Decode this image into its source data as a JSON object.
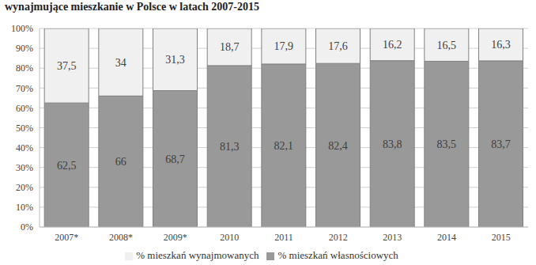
{
  "chart_data": {
    "type": "bar",
    "title": "wynajmujące mieszkanie w Polsce w latach 2007-2015",
    "categories": [
      "2007*",
      "2008*",
      "2009*",
      "2010",
      "2011",
      "2012",
      "2013",
      "2014",
      "2015"
    ],
    "series": [
      {
        "name": "% mieszkań własnościowych",
        "color": "#999999",
        "values": [
          62.5,
          66,
          68.7,
          81.3,
          82.1,
          82.4,
          83.8,
          83.5,
          83.7
        ],
        "value_labels": [
          "62,5",
          "66",
          "68,7",
          "81,3",
          "82,1",
          "82,4",
          "83,8",
          "83,5",
          "83,7"
        ]
      },
      {
        "name": "% mieszkań wynajmowanych",
        "color": "#f0f0f0",
        "values": [
          37.5,
          34,
          31.3,
          18.7,
          17.9,
          17.6,
          16.2,
          16.5,
          16.3
        ],
        "value_labels": [
          "37,5",
          "34",
          "31,3",
          "18,7",
          "17,9",
          "17,6",
          "16,2",
          "16,5",
          "16,3"
        ]
      }
    ],
    "stacked": true,
    "data_labels": true,
    "grid": true,
    "ylim": [
      0,
      100
    ],
    "yticks": [
      {
        "value": 0,
        "label": "0%"
      },
      {
        "value": 10,
        "label": "10%"
      },
      {
        "value": 20,
        "label": "20%"
      },
      {
        "value": 30,
        "label": "30%"
      },
      {
        "value": 40,
        "label": "40%"
      },
      {
        "value": 50,
        "label": "50%"
      },
      {
        "value": 60,
        "label": "60%"
      },
      {
        "value": 70,
        "label": "70%"
      },
      {
        "value": 80,
        "label": "80%"
      },
      {
        "value": 90,
        "label": "90%"
      },
      {
        "value": 100,
        "label": "100%"
      }
    ],
    "legend": "bottom"
  }
}
